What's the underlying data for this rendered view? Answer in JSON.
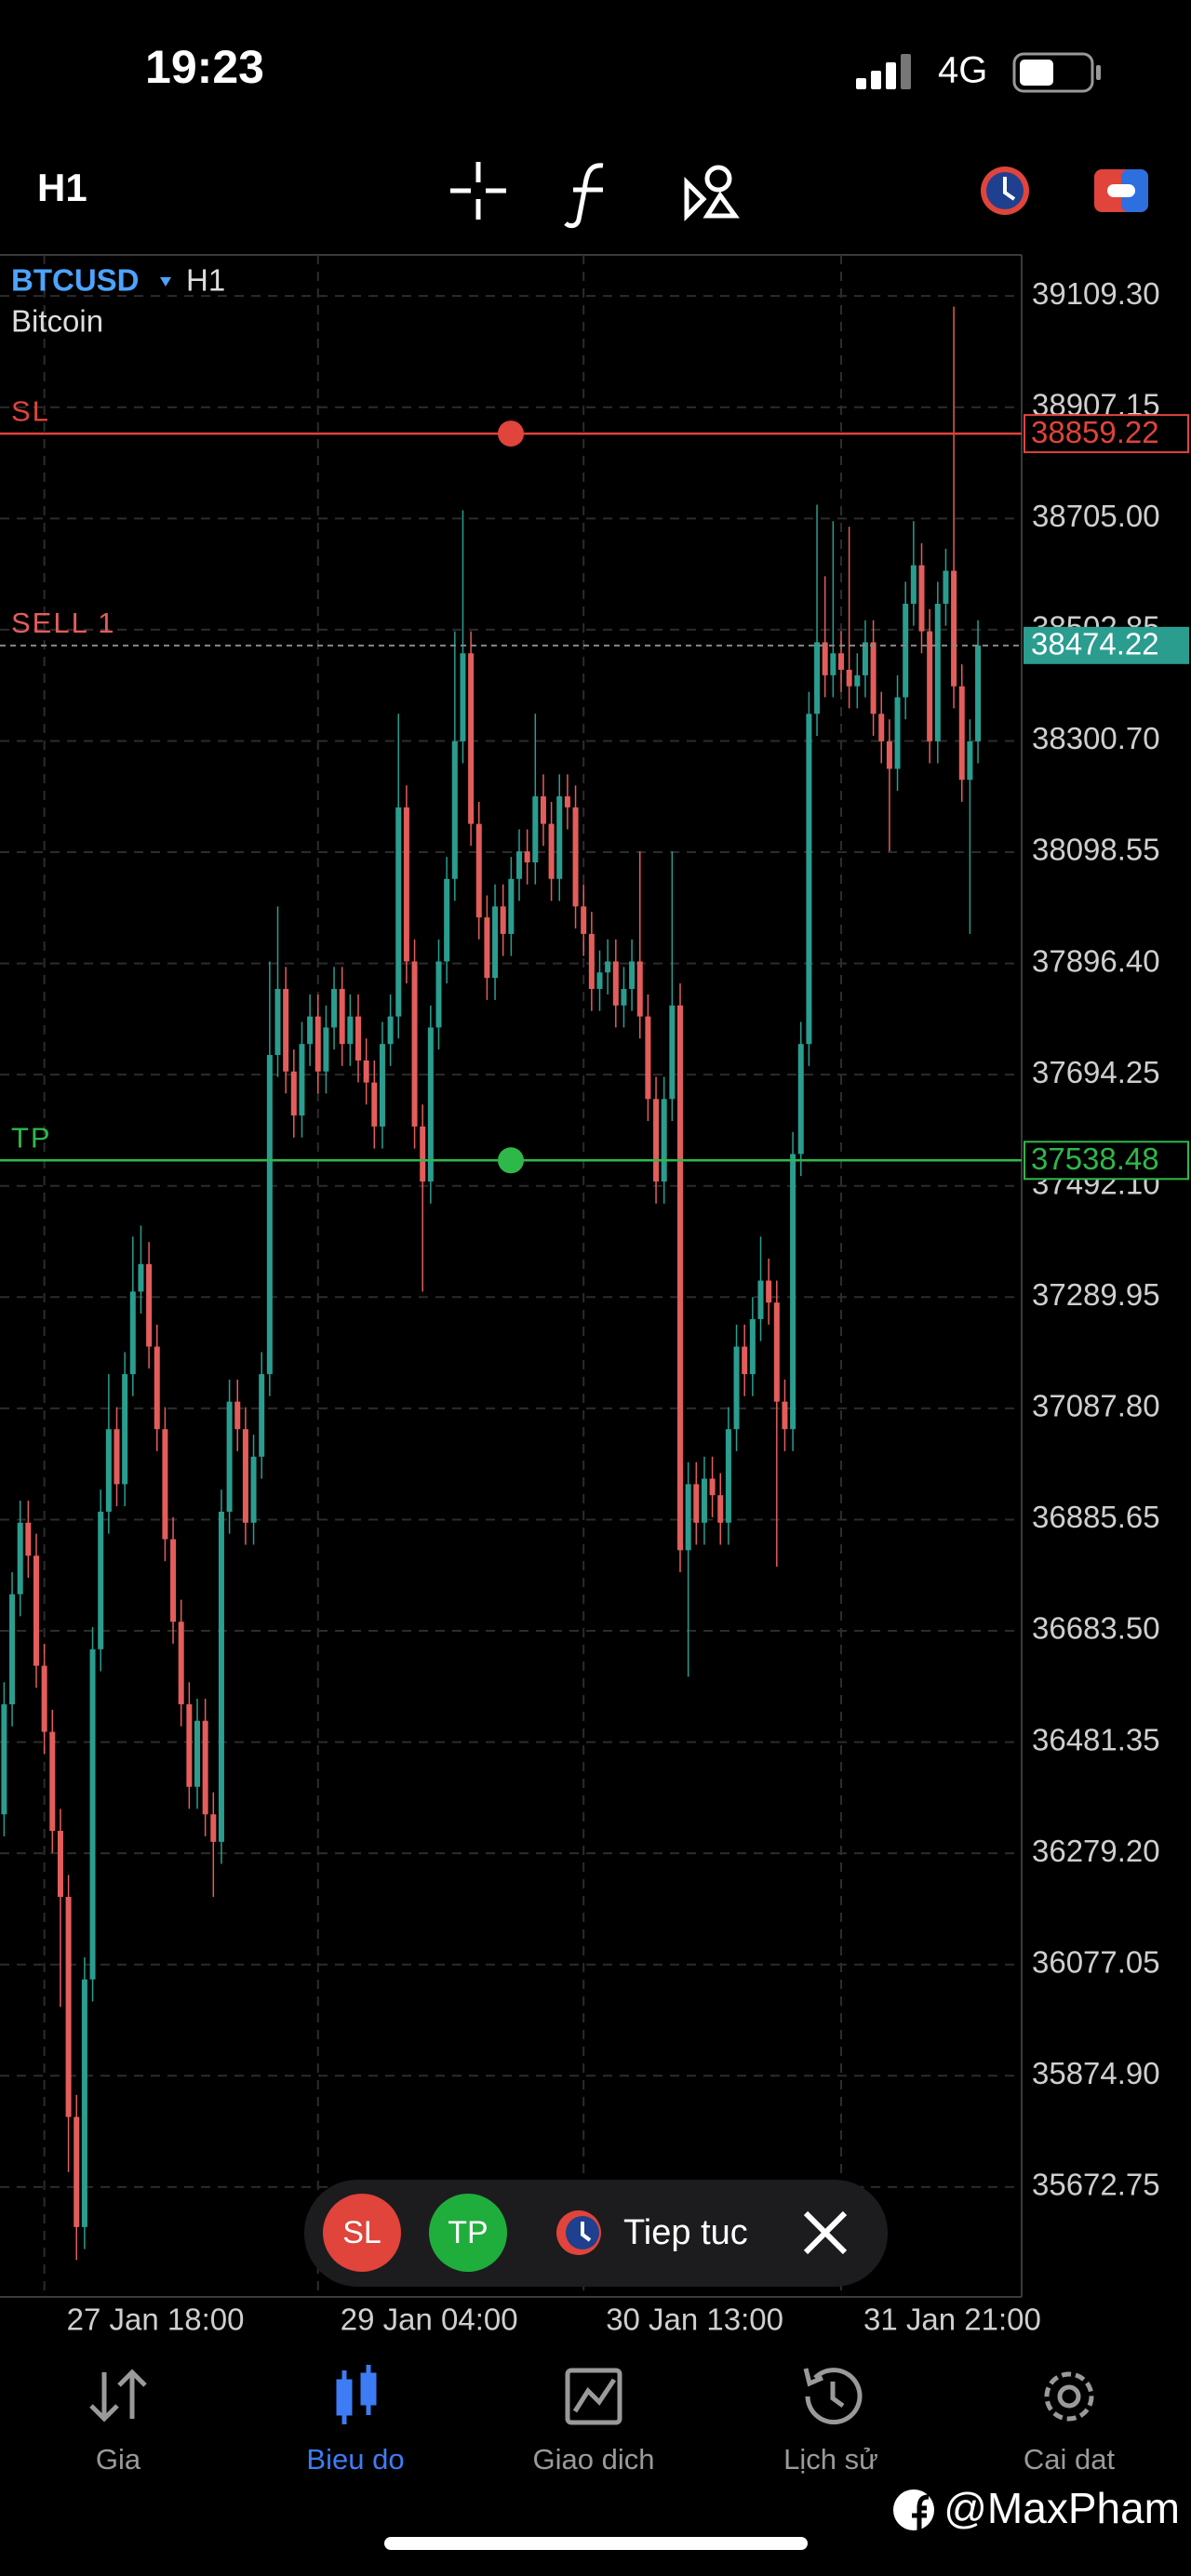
{
  "status_bar": {
    "time": "19:23",
    "network": "4G"
  },
  "toolbar": {
    "timeframe": "H1"
  },
  "chart_data": {
    "type": "candlestick",
    "symbol": "BTCUSD",
    "timeframe": "H1",
    "description": "Bitcoin",
    "up_color": "#2a9d8f",
    "down_color": "#e35d5b",
    "grid": true,
    "categories": [
      null,
      null,
      null,
      null,
      null,
      "27 Jan 18:00",
      null,
      null,
      null,
      null,
      null,
      null,
      null,
      null,
      null,
      null,
      null,
      null,
      null,
      null,
      null,
      null,
      null,
      null,
      null,
      null,
      null,
      null,
      null,
      null,
      null,
      null,
      null,
      null,
      null,
      null,
      null,
      null,
      null,
      "29 Jan 04:00",
      null,
      null,
      null,
      null,
      null,
      null,
      null,
      null,
      null,
      null,
      null,
      null,
      null,
      null,
      null,
      null,
      null,
      null,
      null,
      null,
      null,
      null,
      null,
      null,
      null,
      null,
      null,
      null,
      null,
      null,
      null,
      null,
      "30 Jan 13:00",
      null,
      null,
      null,
      null,
      null,
      null,
      null,
      null,
      null,
      null,
      null,
      null,
      null,
      null,
      null,
      null,
      null,
      null,
      null,
      null,
      null,
      null,
      null,
      null,
      null,
      null,
      null,
      null,
      null,
      null,
      null,
      "31 Jan 21:00",
      null,
      null,
      null,
      null,
      null,
      null,
      null,
      null,
      null,
      null,
      null,
      null,
      null,
      null,
      null,
      null,
      null
    ],
    "open": [
      36350,
      36550,
      36750,
      36880,
      36820,
      36620,
      36500,
      36320,
      36200,
      35800,
      35600,
      36050,
      36650,
      36900,
      37050,
      36950,
      37150,
      37300,
      37350,
      37200,
      37050,
      36850,
      36700,
      36550,
      36400,
      36520,
      36350,
      36300,
      36900,
      37100,
      37050,
      36880,
      37000,
      37150,
      37730,
      37850,
      37700,
      37620,
      37750,
      37800,
      37700,
      37780,
      37850,
      37750,
      37800,
      37720,
      37680,
      37600,
      37750,
      37800,
      38180,
      37900,
      37600,
      37500,
      37780,
      37900,
      38050,
      38300,
      38460,
      38150,
      37980,
      37870,
      38000,
      37950,
      38050,
      38100,
      38080,
      38200,
      38150,
      38050,
      38200,
      38180,
      38000,
      37950,
      37850,
      37880,
      37900,
      37820,
      37850,
      37900,
      37800,
      37650,
      37500,
      37650,
      37820,
      36830,
      36950,
      36880,
      36960,
      36930,
      36880,
      37050,
      37200,
      37150,
      37250,
      37320,
      37280,
      37100,
      37050,
      37550,
      37750,
      38350,
      38480,
      38420,
      38460,
      38430,
      38400,
      38420,
      38480,
      38350,
      38300,
      38250,
      38380,
      38550,
      38620,
      38500,
      38300,
      38550,
      38610,
      38400,
      38230,
      38300
    ],
    "high": [
      36590,
      36790,
      36920,
      36920,
      36860,
      36660,
      36540,
      36360,
      36240,
      35840,
      36090,
      36690,
      36940,
      37150,
      37090,
      37190,
      37400,
      37420,
      37390,
      37240,
      37090,
      36890,
      36740,
      36590,
      36560,
      36560,
      36390,
      36940,
      37140,
      37140,
      37090,
      37040,
      37190,
      37900,
      38000,
      37890,
      37740,
      37790,
      37840,
      37840,
      37820,
      37890,
      37890,
      37840,
      37840,
      37760,
      37720,
      37790,
      37840,
      38350,
      38220,
      37940,
      37640,
      37820,
      37940,
      38090,
      38500,
      38720,
      38500,
      38190,
      38020,
      38040,
      38040,
      38090,
      38140,
      38140,
      38350,
      38240,
      38190,
      38240,
      38240,
      38220,
      38040,
      37990,
      37920,
      37940,
      37940,
      37890,
      37940,
      38100,
      37840,
      37690,
      37690,
      38100,
      37860,
      36990,
      36990,
      37000,
      37000,
      36970,
      37090,
      37240,
      37240,
      37290,
      37400,
      37360,
      37320,
      37140,
      37590,
      37790,
      38390,
      38730,
      38600,
      38700,
      38500,
      38690,
      38460,
      38520,
      38520,
      38390,
      38340,
      38420,
      38590,
      38700,
      38660,
      38540,
      38590,
      38650,
      39090,
      38440,
      38340,
      38520
    ],
    "low": [
      36310,
      36510,
      36710,
      36780,
      36580,
      36460,
      36280,
      36000,
      35700,
      35540,
      35560,
      36010,
      36610,
      36860,
      36910,
      36910,
      37110,
      37260,
      37160,
      37010,
      36810,
      36660,
      36510,
      36360,
      36360,
      36310,
      36200,
      36260,
      36860,
      37010,
      36840,
      36840,
      36960,
      37110,
      37690,
      37660,
      37580,
      37580,
      37710,
      37660,
      37660,
      37740,
      37710,
      37710,
      37680,
      37640,
      37560,
      37560,
      37710,
      37760,
      37860,
      37560,
      37300,
      37460,
      37740,
      37860,
      38010,
      38260,
      38110,
      37940,
      37830,
      37830,
      37910,
      37910,
      38010,
      38040,
      38040,
      38110,
      38010,
      38010,
      38140,
      37960,
      37910,
      37810,
      37810,
      37840,
      37780,
      37780,
      37810,
      37760,
      37610,
      37460,
      37460,
      37610,
      36790,
      36600,
      36840,
      36840,
      36890,
      36840,
      36840,
      37010,
      37110,
      37110,
      37210,
      37240,
      36800,
      37010,
      37010,
      37510,
      37710,
      38310,
      38380,
      38380,
      38390,
      38360,
      38360,
      38380,
      38310,
      38260,
      38100,
      38210,
      38340,
      38510,
      38460,
      38260,
      38260,
      38510,
      38360,
      38190,
      37950,
      38260
    ],
    "close": [
      36550,
      36750,
      36880,
      36820,
      36620,
      36500,
      36320,
      36200,
      35800,
      35600,
      36050,
      36650,
      36900,
      37050,
      36950,
      37150,
      37300,
      37350,
      37200,
      37050,
      36850,
      36700,
      36550,
      36400,
      36520,
      36350,
      36300,
      36900,
      37100,
      37050,
      36880,
      37000,
      37150,
      37730,
      37850,
      37700,
      37620,
      37750,
      37800,
      37700,
      37780,
      37850,
      37750,
      37800,
      37720,
      37680,
      37600,
      37750,
      37800,
      38180,
      37900,
      37600,
      37500,
      37780,
      37900,
      38050,
      38300,
      38460,
      38150,
      37980,
      37870,
      38000,
      37950,
      38050,
      38100,
      38080,
      38200,
      38150,
      38050,
      38200,
      38180,
      38000,
      37950,
      37850,
      37880,
      37900,
      37820,
      37850,
      37900,
      37800,
      37650,
      37500,
      37650,
      37820,
      36830,
      36950,
      36880,
      36960,
      36930,
      36880,
      37050,
      37200,
      37150,
      37250,
      37320,
      37280,
      37100,
      37050,
      37550,
      37750,
      38350,
      38480,
      38420,
      38460,
      38430,
      38400,
      38420,
      38480,
      38350,
      38300,
      38250,
      38380,
      38550,
      38620,
      38500,
      38300,
      38550,
      38610,
      38400,
      38230,
      38300,
      38474.22
    ],
    "ylim": [
      35473,
      39184
    ],
    "yticks": [
      {
        "value": 39109.3,
        "label": "39109.30"
      },
      38907.15,
      {
        "value": 38705,
        "label": "38705.00"
      },
      38502.85,
      {
        "value": 38300.7,
        "label": "38300.70"
      },
      38098.55,
      {
        "value": 37896.4,
        "label": "37896.40"
      },
      37694.25,
      {
        "value": 37492.1,
        "label": "37492.10"
      },
      37289.95,
      {
        "value": 37087.8,
        "label": "37087.80"
      },
      36885.65,
      {
        "value": 36683.5,
        "label": "36683.50"
      },
      36481.35,
      {
        "value": 36279.2,
        "label": "36279.20"
      },
      36077.05,
      {
        "value": 35874.9,
        "label": "35874.90"
      },
      35672.75
    ],
    "price_lines": [
      {
        "label": "SL",
        "value": 38859.22,
        "color": "#e0443a",
        "tag_color": "#e0443a"
      },
      {
        "label": "SELL 1",
        "value": 38474.22,
        "color": "#888888",
        "tag_color": "#2a9d8f"
      },
      {
        "label": "TP",
        "value": 37538.48,
        "color": "#2fb84a",
        "tag_color": "#2fb84a"
      }
    ]
  },
  "floating_bar": {
    "sl": "SL",
    "tp": "TP",
    "continue": "Tiep tuc"
  },
  "nav": {
    "items": [
      "Gia",
      "Bieu do",
      "Giao dich",
      "Lịch sử",
      "Cai dat"
    ],
    "active": 1
  },
  "watermark": "@MaxPham"
}
